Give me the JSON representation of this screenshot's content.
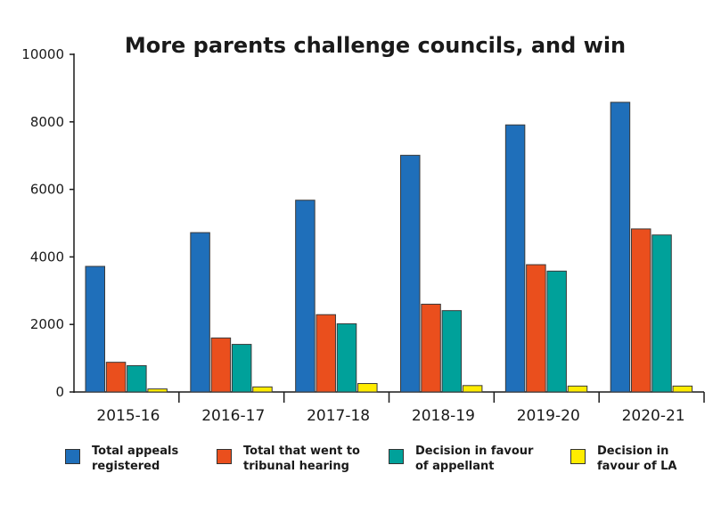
{
  "chart_data": {
    "type": "bar",
    "title": "More parents challenge councils, and win",
    "xlabel": "",
    "ylabel": "",
    "ylim": [
      0,
      10000
    ],
    "yticks": [
      0,
      2000,
      4000,
      6000,
      8000,
      10000
    ],
    "ytick_labels": [
      "0",
      "2000",
      "4000",
      "6000",
      "8000",
      "10000"
    ],
    "grid": false,
    "legend_position": "bottom",
    "categories": [
      "2015-16",
      "2016-17",
      "2017-18",
      "2018-19",
      "2019-20",
      "2020-21"
    ],
    "series": [
      {
        "name": "Total appeals registered",
        "color": "#1f6fba",
        "values": [
          3720,
          4720,
          5680,
          7010,
          7910,
          8580
        ]
      },
      {
        "name": "Total that went to tribunal hearing",
        "color": "#ea4f1d",
        "values": [
          880,
          1600,
          2290,
          2600,
          3770,
          4830
        ]
      },
      {
        "name": "Decision in favour of appellant",
        "color": "#00a19a",
        "values": [
          780,
          1410,
          2020,
          2410,
          3580,
          4650
        ]
      },
      {
        "name": "Decision in favour of LA",
        "color": "#ffec00",
        "values": [
          90,
          150,
          250,
          190,
          175,
          175
        ]
      }
    ]
  },
  "legend": [
    {
      "label": "Total appeals\nregistered",
      "color": "#1f6fba"
    },
    {
      "label": "Total that went to\ntribunal hearing",
      "color": "#ea4f1d"
    },
    {
      "label": "Decision in favour\nof appellant",
      "color": "#00a19a"
    },
    {
      "label": "Decision in\nfavour of LA",
      "color": "#ffec00"
    }
  ]
}
